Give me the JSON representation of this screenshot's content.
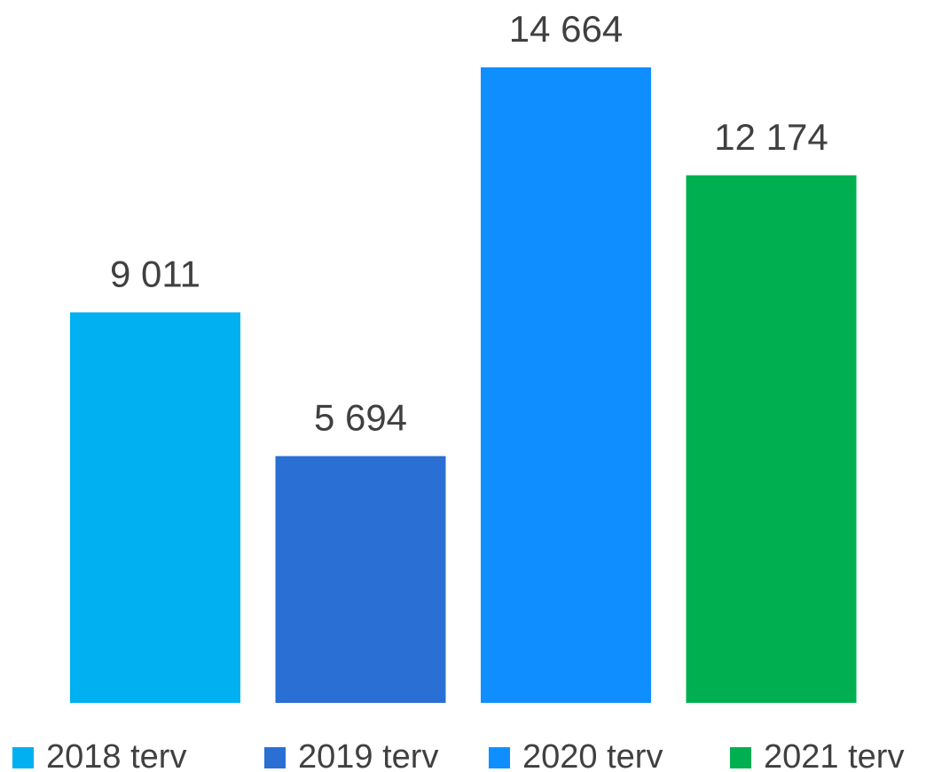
{
  "chart_data": {
    "type": "bar",
    "series": [
      {
        "name": "2018 terv",
        "color": "#00b0f0",
        "values": [
          9011
        ],
        "value_labels": [
          "9 011"
        ]
      },
      {
        "name": "2019 terv",
        "color": "#2a6fd3",
        "values": [
          5694
        ],
        "value_labels": [
          "5 694"
        ]
      },
      {
        "name": "2020 terv",
        "color": "#0f8fff",
        "values": [
          14664
        ],
        "value_labels": [
          "14 664"
        ]
      },
      {
        "name": "2021 terv",
        "color": "#00b050",
        "values": [
          12174
        ],
        "value_labels": [
          "12 174"
        ]
      }
    ],
    "legend": "bottom"
  }
}
